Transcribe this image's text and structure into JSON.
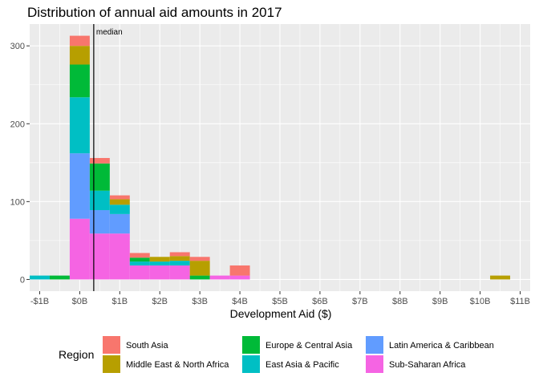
{
  "chart_data": {
    "type": "bar",
    "stacked": true,
    "title": "Distribution of annual aid amounts in 2017",
    "xlabel": "Development Aid ($)",
    "ylabel": "",
    "x_unit": "billions USD",
    "xlim": [
      -1.25,
      11.25
    ],
    "ylim": [
      -15,
      328
    ],
    "bin_width": 0.5,
    "x_ticks": [
      -1,
      0,
      1,
      2,
      3,
      4,
      5,
      6,
      7,
      8,
      9,
      10,
      11
    ],
    "x_tick_labels": [
      "-$1B",
      "$0B",
      "$1B",
      "$2B",
      "$3B",
      "$4B",
      "$5B",
      "$6B",
      "$7B",
      "$8B",
      "$9B",
      "$10B",
      "$11B"
    ],
    "y_ticks": [
      0,
      100,
      200,
      300
    ],
    "y_tick_labels": [
      "0",
      "100",
      "200",
      "300"
    ],
    "grid": true,
    "median": {
      "value": 0.35,
      "label": "median"
    },
    "legend": {
      "title": "Region",
      "position": "bottom"
    },
    "bin_centers": [
      -1.0,
      -0.5,
      0.0,
      0.5,
      1.0,
      1.5,
      2.0,
      2.5,
      3.0,
      3.5,
      4.0,
      10.5
    ],
    "series": [
      {
        "name": "Sub-Saharan Africa",
        "color": "#F564E3",
        "values": [
          0,
          0,
          78,
          59,
          59,
          18,
          18,
          18,
          0,
          5,
          5,
          0
        ]
      },
      {
        "name": "Latin America & Caribbean",
        "color": "#619CFF",
        "values": [
          0,
          0,
          84,
          30,
          25,
          0,
          0,
          0,
          0,
          0,
          0,
          0
        ]
      },
      {
        "name": "East Asia & Pacific",
        "color": "#00BFC4",
        "values": [
          5,
          0,
          72,
          25,
          12,
          5,
          5,
          6,
          0,
          0,
          0,
          0
        ]
      },
      {
        "name": "Europe & Central Asia",
        "color": "#00BA38",
        "values": [
          0,
          5,
          42,
          35,
          0,
          5,
          0,
          0,
          5,
          0,
          0,
          0
        ]
      },
      {
        "name": "Middle East & North Africa",
        "color": "#B79F00",
        "values": [
          0,
          0,
          24,
          0,
          7,
          0,
          6,
          6,
          19,
          0,
          0,
          5
        ]
      },
      {
        "name": "South Asia",
        "color": "#F8766D",
        "values": [
          0,
          0,
          13,
          7,
          5,
          6,
          0,
          5,
          5,
          0,
          13,
          0
        ]
      }
    ],
    "legend_order": [
      "South Asia",
      "Middle East & North Africa",
      "Europe & Central Asia",
      "East Asia & Pacific",
      "Latin America & Caribbean",
      "Sub-Saharan Africa"
    ]
  },
  "colors": {
    "panel_background": "#EBEBEB",
    "grid_major": "#FFFFFF",
    "text": "#000000",
    "tick_text": "#4D4D4D",
    "median_line": "#000000"
  }
}
